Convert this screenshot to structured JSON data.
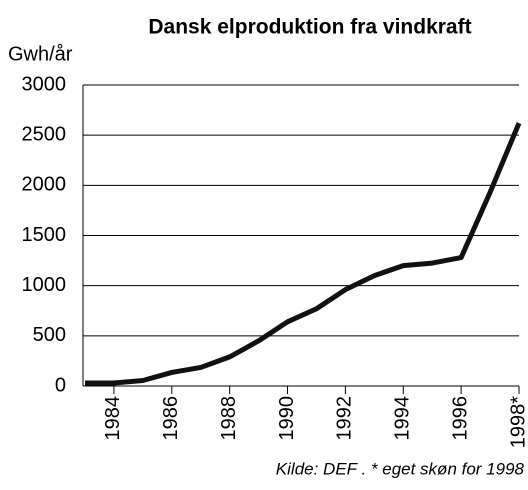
{
  "chart_data": {
    "type": "line",
    "title": "Dansk elproduktion fra vindkraft",
    "y_label": "Gwh/år",
    "source": "Kilde: DEF . * eget skøn for 1998",
    "x": [
      1983,
      1984,
      1985,
      1986,
      1987,
      1988,
      1989,
      1990,
      1991,
      1992,
      1993,
      1994,
      1995,
      1996,
      1997,
      1998
    ],
    "values": [
      30,
      30,
      55,
      135,
      185,
      290,
      450,
      640,
      770,
      960,
      1100,
      1200,
      1225,
      1280,
      1930,
      2620
    ],
    "color": "#111111",
    "xlim": [
      1983,
      1998
    ],
    "xticks": [
      1984,
      1986,
      1988,
      1990,
      1992,
      1994,
      1996,
      {
        "value": 1998,
        "label": "1998*"
      }
    ],
    "ylim": [
      0,
      3000
    ],
    "yticks": [
      0,
      500,
      1000,
      1500,
      2000,
      2500,
      3000
    ],
    "grid": true
  }
}
